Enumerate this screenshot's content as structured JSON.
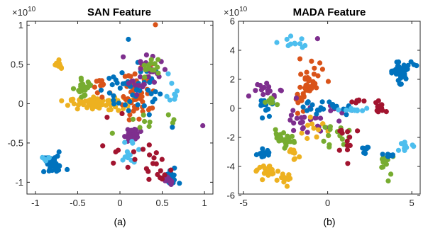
{
  "colors": {
    "blue": "#0072BD",
    "orange": "#D95319",
    "yellow": "#EDB120",
    "purple": "#7E2F8E",
    "green": "#77AC30",
    "cyan": "#4DBEEE",
    "red": "#A2142F"
  },
  "chart_data": [
    {
      "type": "scatter",
      "title": "SAN Feature",
      "caption": "(a)",
      "exponent_label": "×10",
      "exponent_power": "10",
      "xlim": [
        -1.1,
        1.1
      ],
      "ylim": [
        -1.15,
        1.05
      ],
      "xticks": [
        -1,
        -0.5,
        0,
        0.5,
        1
      ],
      "yticks": [
        -1,
        -0.5,
        0,
        0.5,
        1
      ],
      "xtick_labels": [
        "-1",
        "-0.5",
        "0",
        "0.5",
        "1"
      ],
      "ytick_labels": [
        "-1",
        "-0.5",
        "0",
        "0.5",
        "1"
      ],
      "clusters": [
        {
          "color": "blue",
          "center": [
            -0.8,
            -0.78
          ],
          "spread": [
            0.1,
            0.07
          ],
          "count": 32
        },
        {
          "color": "cyan",
          "center": [
            -0.86,
            -0.72
          ],
          "spread": [
            0.04,
            0.03
          ],
          "count": 5
        },
        {
          "color": "yellow",
          "center": [
            -0.28,
            0.0
          ],
          "spread": [
            0.2,
            0.05
          ],
          "count": 70
        },
        {
          "color": "yellow",
          "center": [
            -0.72,
            0.5
          ],
          "spread": [
            0.03,
            0.04
          ],
          "count": 10
        },
        {
          "color": "green",
          "center": [
            -0.42,
            0.2
          ],
          "spread": [
            0.05,
            0.08
          ],
          "count": 25
        },
        {
          "color": "orange",
          "center": [
            -0.2,
            0.25
          ],
          "spread": [
            0.07,
            0.1
          ],
          "count": 12
        },
        {
          "color": "orange",
          "center": [
            0.22,
            0.15
          ],
          "spread": [
            0.14,
            0.22
          ],
          "count": 45
        },
        {
          "color": "blue",
          "center": [
            0.1,
            0.2
          ],
          "spread": [
            0.2,
            0.22
          ],
          "count": 45
        },
        {
          "color": "purple",
          "center": [
            0.15,
            -0.4
          ],
          "spread": [
            0.06,
            0.06
          ],
          "count": 25
        },
        {
          "color": "purple",
          "center": [
            0.3,
            0.4
          ],
          "spread": [
            0.12,
            0.15
          ],
          "count": 28
        },
        {
          "color": "green",
          "center": [
            0.38,
            0.45
          ],
          "spread": [
            0.08,
            0.07
          ],
          "count": 14
        },
        {
          "color": "cyan",
          "center": [
            0.08,
            -0.6
          ],
          "spread": [
            0.08,
            0.1
          ],
          "count": 12
        },
        {
          "color": "cyan",
          "center": [
            0.62,
            0.12
          ],
          "spread": [
            0.05,
            0.12
          ],
          "count": 8
        },
        {
          "color": "blue",
          "center": [
            0.6,
            -0.95
          ],
          "spread": [
            0.05,
            0.07
          ],
          "count": 16
        },
        {
          "color": "purple",
          "center": [
            0.58,
            -0.98
          ],
          "spread": [
            0.04,
            0.05
          ],
          "count": 10
        },
        {
          "color": "red",
          "center": [
            0.45,
            -0.82
          ],
          "spread": [
            0.18,
            0.18
          ],
          "count": 16
        },
        {
          "color": "red",
          "center": [
            0.0,
            -0.5
          ],
          "spread": [
            0.18,
            0.28
          ],
          "count": 10
        },
        {
          "color": "green",
          "center": [
            0.35,
            -0.25
          ],
          "spread": [
            0.22,
            0.12
          ],
          "count": 10
        }
      ],
      "points": [
        {
          "x": 0.98,
          "y": -0.28,
          "color": "purple"
        },
        {
          "x": 0.42,
          "y": 1.02,
          "color": "orange"
        },
        {
          "x": 0.1,
          "y": 0.82,
          "color": "blue"
        },
        {
          "x": 0.62,
          "y": -0.3,
          "color": "blue"
        }
      ]
    },
    {
      "type": "scatter",
      "title": "MADA Feature",
      "caption": "(b)",
      "exponent_label": "×10",
      "exponent_power": "10",
      "xlim": [
        -5.3,
        5.5
      ],
      "ylim": [
        -5.9,
        6.0
      ],
      "xticks": [
        -5,
        0,
        5
      ],
      "yticks": [
        -6,
        -4,
        -2,
        0,
        2,
        4,
        6
      ],
      "xtick_labels": [
        "-5",
        "0",
        "5"
      ],
      "ytick_labels": [
        "-6",
        "-4",
        "-2",
        "0",
        "2",
        "4",
        "6"
      ],
      "clusters": [
        {
          "color": "blue",
          "center": [
            4.3,
            2.6
          ],
          "spread": [
            0.45,
            0.45
          ],
          "count": 45
        },
        {
          "color": "cyan",
          "center": [
            -2.0,
            4.5
          ],
          "spread": [
            0.6,
            0.2
          ],
          "count": 10
        },
        {
          "color": "orange",
          "center": [
            -1.2,
            1.6
          ],
          "spread": [
            0.6,
            1.0
          ],
          "count": 45
        },
        {
          "color": "purple",
          "center": [
            -3.8,
            1.2
          ],
          "spread": [
            0.5,
            0.35
          ],
          "count": 16
        },
        {
          "color": "purple",
          "center": [
            -0.5,
            -0.7
          ],
          "spread": [
            1.0,
            0.8
          ],
          "count": 20
        },
        {
          "color": "blue",
          "center": [
            -3.6,
            0.3
          ],
          "spread": [
            0.3,
            0.4
          ],
          "count": 14
        },
        {
          "color": "blue",
          "center": [
            0.0,
            0.0
          ],
          "spread": [
            1.0,
            0.3
          ],
          "count": 22
        },
        {
          "color": "red",
          "center": [
            3.2,
            0.1
          ],
          "spread": [
            0.3,
            0.25
          ],
          "count": 14
        },
        {
          "color": "red",
          "center": [
            1.8,
            0.5
          ],
          "spread": [
            0.3,
            0.2
          ],
          "count": 6
        },
        {
          "color": "cyan",
          "center": [
            1.5,
            -0.1
          ],
          "spread": [
            0.7,
            0.1
          ],
          "count": 10
        },
        {
          "color": "yellow",
          "center": [
            -3.6,
            -4.4
          ],
          "spread": [
            0.35,
            0.25
          ],
          "count": 20
        },
        {
          "color": "yellow",
          "center": [
            -2.6,
            -4.9
          ],
          "spread": [
            0.3,
            0.25
          ],
          "count": 14
        },
        {
          "color": "yellow",
          "center": [
            -2.0,
            -3.2
          ],
          "spread": [
            0.3,
            0.4
          ],
          "count": 10
        },
        {
          "color": "yellow",
          "center": [
            -0.8,
            -1.5
          ],
          "spread": [
            0.5,
            0.4
          ],
          "count": 12
        },
        {
          "color": "green",
          "center": [
            -2.7,
            -2.2
          ],
          "spread": [
            0.5,
            0.35
          ],
          "count": 22
        },
        {
          "color": "green",
          "center": [
            0.3,
            -1.9
          ],
          "spread": [
            0.6,
            0.4
          ],
          "count": 14
        },
        {
          "color": "green",
          "center": [
            -3.4,
            0.5
          ],
          "spread": [
            0.3,
            0.3
          ],
          "count": 8
        },
        {
          "color": "green",
          "center": [
            3.5,
            -3.7
          ],
          "spread": [
            0.3,
            0.4
          ],
          "count": 10
        },
        {
          "color": "blue",
          "center": [
            -3.9,
            -3.2
          ],
          "spread": [
            0.3,
            0.25
          ],
          "count": 14
        },
        {
          "color": "blue",
          "center": [
            2.3,
            -2.8
          ],
          "spread": [
            0.2,
            0.2
          ],
          "count": 8
        },
        {
          "color": "blue",
          "center": [
            3.7,
            -3.2
          ],
          "spread": [
            0.25,
            0.2
          ],
          "count": 8
        },
        {
          "color": "cyan",
          "center": [
            4.6,
            -2.6
          ],
          "spread": [
            0.3,
            0.15
          ],
          "count": 12
        },
        {
          "color": "red",
          "center": [
            1.3,
            -2.2
          ],
          "spread": [
            0.4,
            0.6
          ],
          "count": 12
        },
        {
          "color": "purple",
          "center": [
            -1.8,
            -1.0
          ],
          "spread": [
            0.4,
            0.4
          ],
          "count": 10
        }
      ],
      "points": [
        {
          "x": 3.6,
          "y": -5.0,
          "color": "green"
        },
        {
          "x": -0.6,
          "y": 4.8,
          "color": "purple"
        },
        {
          "x": -1.5,
          "y": 4.2,
          "color": "cyan"
        }
      ]
    }
  ]
}
